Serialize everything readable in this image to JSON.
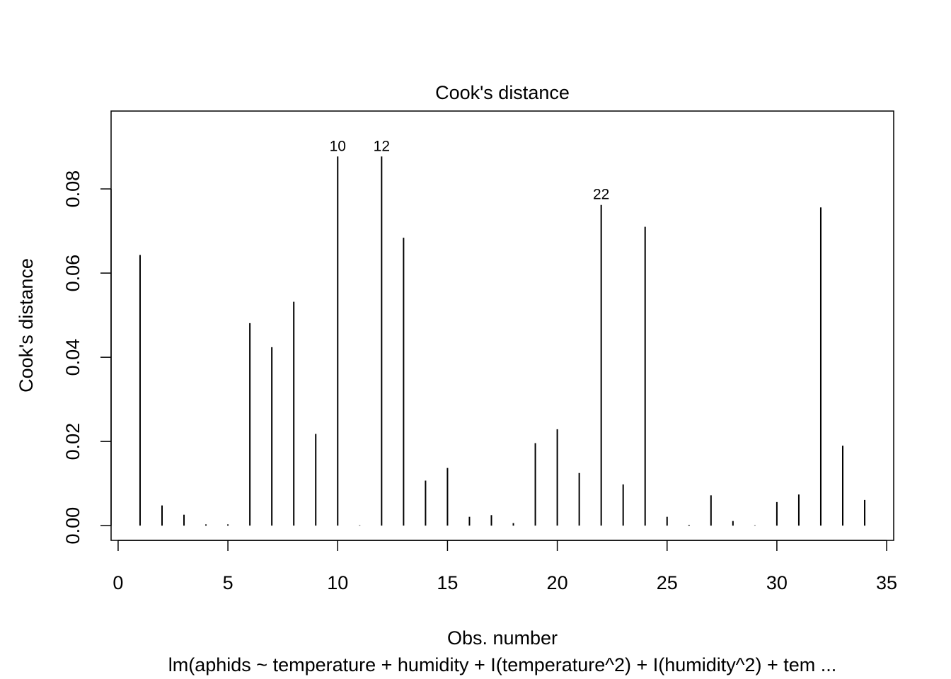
{
  "chart_data": {
    "type": "bar",
    "title": "Cook's distance",
    "xlabel": "Obs. number",
    "ylabel": "Cook's distance",
    "subtitle": "lm(aphids ~ temperature + humidity + I(temperature^2) + I(humidity^2) + tem ...",
    "xlim": [
      -0.32,
      35.32
    ],
    "ylim": [
      -0.0035,
      0.0985
    ],
    "x_ticks": [
      0,
      5,
      10,
      15,
      20,
      25,
      30,
      35
    ],
    "x_tick_labels": [
      "0",
      "5",
      "10",
      "15",
      "20",
      "25",
      "30",
      "35"
    ],
    "y_ticks": [
      0,
      0.02,
      0.04,
      0.06,
      0.08
    ],
    "y_tick_labels": [
      "0.00",
      "0.02",
      "0.04",
      "0.06",
      "0.08"
    ],
    "grid": false,
    "x": [
      1,
      2,
      3,
      4,
      5,
      6,
      7,
      8,
      9,
      10,
      11,
      12,
      13,
      14,
      15,
      16,
      17,
      18,
      19,
      20,
      21,
      22,
      23,
      24,
      25,
      26,
      27,
      28,
      29,
      30,
      31,
      32,
      33,
      34
    ],
    "values": [
      0.0643,
      0.0048,
      0.0026,
      0.0003,
      0.0003,
      0.0481,
      0.0424,
      0.0532,
      0.0218,
      0.0877,
      0.0001,
      0.0877,
      0.0684,
      0.0107,
      0.0137,
      0.0021,
      0.0025,
      0.0006,
      0.0196,
      0.0229,
      0.0125,
      0.0762,
      0.0098,
      0.071,
      0.0021,
      0.0002,
      0.0072,
      0.0011,
      0.0001,
      0.0056,
      0.0074,
      0.0756,
      0.019,
      0.0061
    ],
    "annotations": [
      {
        "x": 10,
        "y": 0.0877,
        "text": "10"
      },
      {
        "x": 12,
        "y": 0.0877,
        "text": "12"
      },
      {
        "x": 22,
        "y": 0.0762,
        "text": "22"
      }
    ]
  }
}
